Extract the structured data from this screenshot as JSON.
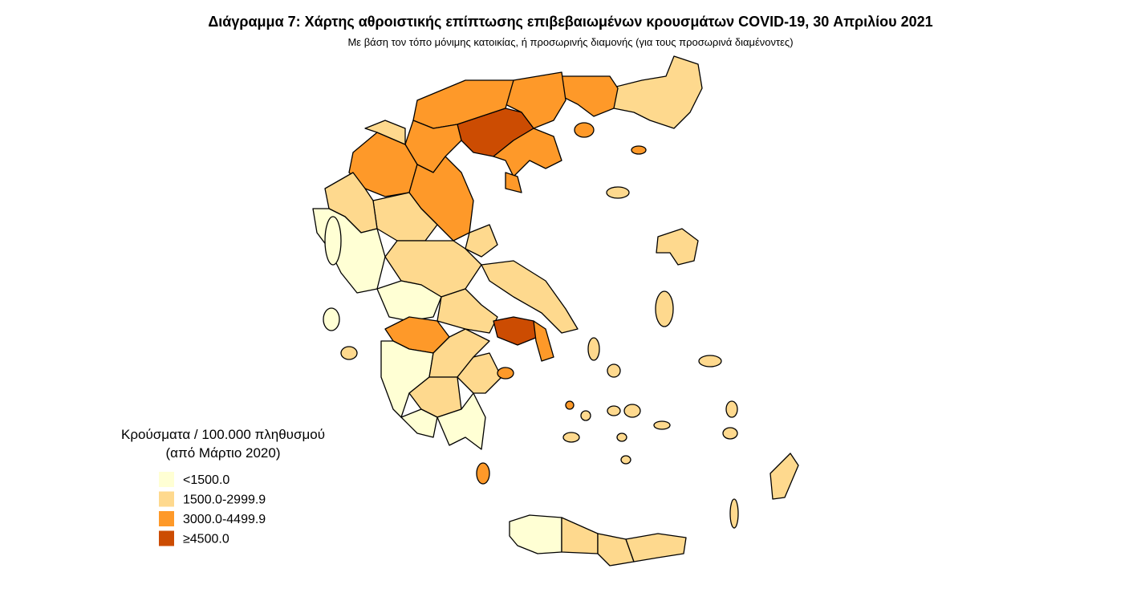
{
  "header": {
    "title": "Διάγραμμα 7: Χάρτης αθροιστικής επίπτωσης επιβεβαιωμένων κρουσμάτων COVID-19, 30 Απριλίου 2021",
    "subtitle": "Με βάση τον τόπο μόνιμης κατοικίας, ή προσωρινής διαμονής (για τους προσωρινά διαμένοντες)"
  },
  "legend": {
    "title": [
      "Κρούσματα / 100.000 πληθυσμού",
      "(από Μάρτιο 2020)"
    ],
    "items": [
      {
        "label": "<1500.0",
        "color": "#ffffd4"
      },
      {
        "label": "1500.0-2999.9",
        "color": "#fed98e"
      },
      {
        "label": "3000.0-4499.9",
        "color": "#fe9929"
      },
      {
        "label": "≥4500.0",
        "color": "#cc4c02"
      }
    ]
  }
}
